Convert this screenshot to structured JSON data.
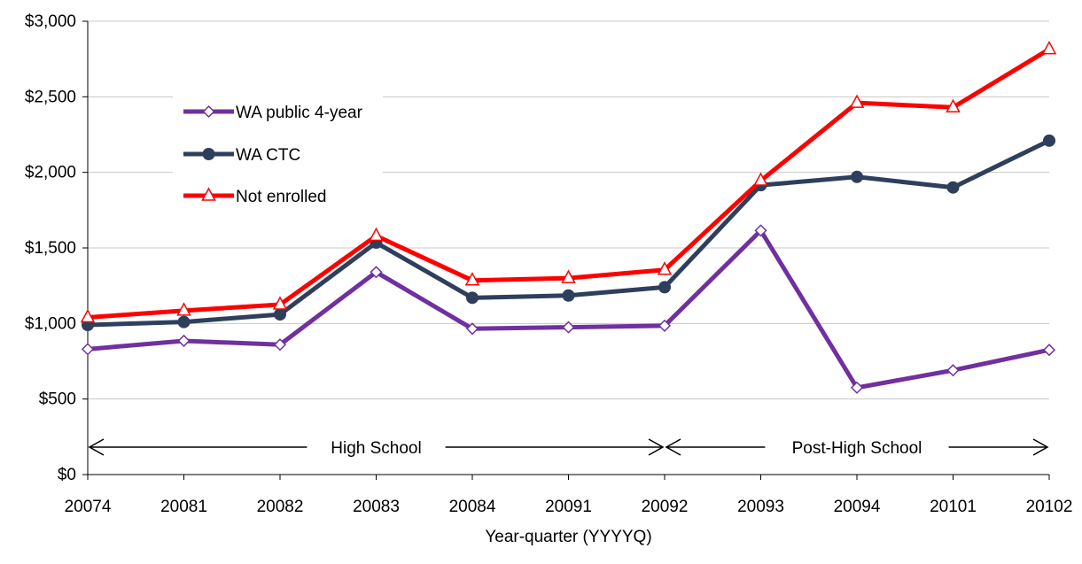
{
  "chart_data": {
    "type": "line",
    "title": "",
    "xlabel": "Year-quarter (YYYYQ)",
    "ylabel": "",
    "categories": [
      "20074",
      "20081",
      "20082",
      "20083",
      "20084",
      "20091",
      "20092",
      "20093",
      "20094",
      "20101",
      "20102"
    ],
    "ylim": [
      0,
      3000
    ],
    "yticks": [
      0,
      500,
      1000,
      1500,
      2000,
      2500,
      3000
    ],
    "ytick_labels": [
      "$0",
      "$500",
      "$1,000",
      "$1,500",
      "$2,000",
      "$2,500",
      "$3,000"
    ],
    "grid": true,
    "legend_position": "upper-left",
    "series": [
      {
        "name": "WA public 4-year",
        "color": "#7030a0",
        "marker": "diamond-open",
        "values": [
          830,
          885,
          860,
          1340,
          965,
          975,
          985,
          1615,
          575,
          690,
          825
        ]
      },
      {
        "name": "WA CTC",
        "color": "#2e3f5c",
        "marker": "circle-filled",
        "values": [
          990,
          1010,
          1060,
          1535,
          1170,
          1185,
          1240,
          1915,
          1970,
          1900,
          2210
        ]
      },
      {
        "name": "Not enrolled",
        "color": "#ff0000",
        "marker": "triangle-open",
        "values": [
          1040,
          1085,
          1125,
          1580,
          1285,
          1300,
          1355,
          1945,
          2460,
          2430,
          2815
        ]
      }
    ],
    "annotations": [
      {
        "text": "High School",
        "from": "20074",
        "to": "20092"
      },
      {
        "text": "Post-High School",
        "from": "20092",
        "to": "20102"
      }
    ]
  }
}
